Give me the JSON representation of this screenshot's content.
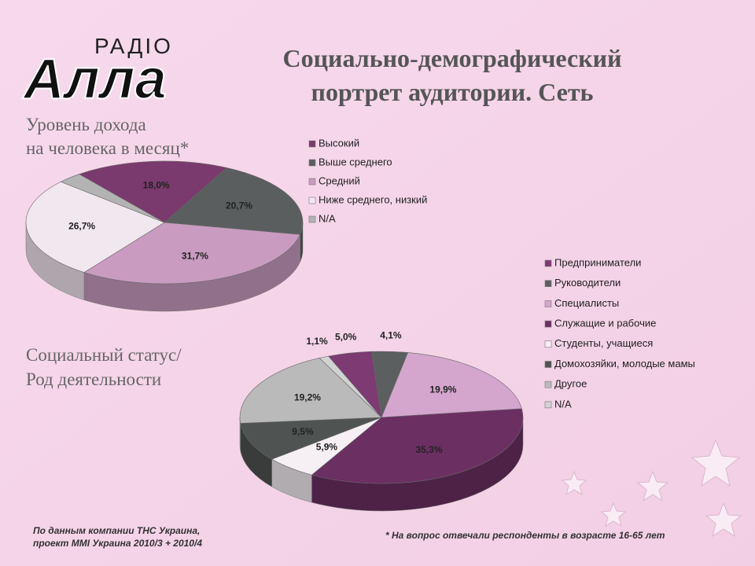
{
  "logo": {
    "top": "РАДIO",
    "main": "Алла"
  },
  "title_lines": [
    "Социально-демографический",
    "портрет аудитории. Сеть"
  ],
  "source_lines": [
    "По данным компании ТНС Украина,",
    "проект MMI Украина 2010/3 + 2010/4"
  ],
  "footnote": "* На вопрос отвечали респонденты в возрасте 16-65 лет",
  "chart_data": [
    {
      "type": "pie",
      "title": [
        "Уровень дохода",
        "на человека в месяц*"
      ],
      "categories": [
        "Высокий",
        "Выше среднего",
        "Средний",
        "Ниже среднего, низкий",
        "N/A"
      ],
      "values": [
        18.0,
        20.7,
        31.7,
        26.7,
        2.9
      ],
      "value_labels": [
        "18,0%",
        "20,7%",
        "31,7%",
        "26,7%",
        null
      ],
      "colors": [
        "#7b3a6e",
        "#5a5e5e",
        "#c99bc1",
        "#f1e7ef",
        "#b3b3b3"
      ]
    },
    {
      "type": "pie",
      "title": [
        "Социальный статус/",
        "Род деятельности"
      ],
      "categories": [
        "Предприниматели",
        "Руководители",
        "Специалисты",
        "Служащие и рабочие",
        "Студенты, учащиеся",
        "Домохозяйки, молодые мамы",
        "Другое",
        "N/A"
      ],
      "values": [
        5.0,
        4.1,
        19.9,
        35.3,
        5.9,
        9.5,
        19.2,
        1.1
      ],
      "value_labels": [
        "5,0%",
        "4,1%",
        "19,9%",
        "35,3%",
        "5,9%",
        "9,5%",
        "19,2%",
        "1,1%"
      ],
      "colors": [
        "#7d3a73",
        "#5b5f5f",
        "#d4a6ce",
        "#6c2f62",
        "#f6eff4",
        "#4f5352",
        "#bababa",
        "#d2d2d2"
      ]
    }
  ]
}
